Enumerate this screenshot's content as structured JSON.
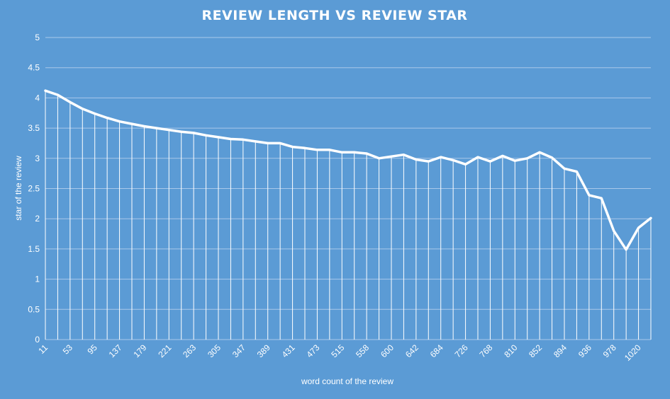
{
  "chart_data": {
    "type": "line",
    "title": "REVIEW LENGTH VS REVIEW STAR",
    "xlabel": "word count of the review",
    "ylabel": "star of the review",
    "ylim": [
      0,
      5
    ],
    "yticks": [
      "0",
      "0.5",
      "1",
      "1.5",
      "2",
      "2.5",
      "3",
      "3.5",
      "4",
      "4.5",
      "5"
    ],
    "grid": true,
    "drop_lines": true,
    "legend": "none",
    "x": [
      11,
      32,
      53,
      74,
      95,
      116,
      137,
      158,
      179,
      200,
      221,
      242,
      263,
      284,
      305,
      326,
      347,
      368,
      389,
      410,
      431,
      452,
      473,
      494,
      515,
      537,
      558,
      579,
      600,
      621,
      642,
      663,
      684,
      705,
      726,
      747,
      768,
      789,
      810,
      831,
      852,
      873,
      894,
      915,
      936,
      957,
      978,
      999,
      1020,
      1041
    ],
    "xtick_labels": [
      "11",
      "53",
      "95",
      "137",
      "179",
      "221",
      "263",
      "305",
      "347",
      "389",
      "431",
      "473",
      "515",
      "558",
      "600",
      "642",
      "684",
      "726",
      "768",
      "810",
      "852",
      "894",
      "936",
      "978",
      "1020"
    ],
    "series": [
      {
        "values": [
          4.12,
          4.05,
          3.93,
          3.82,
          3.74,
          3.67,
          3.61,
          3.57,
          3.53,
          3.5,
          3.47,
          3.44,
          3.42,
          3.38,
          3.35,
          3.32,
          3.31,
          3.28,
          3.25,
          3.25,
          3.19,
          3.17,
          3.14,
          3.14,
          3.1,
          3.1,
          3.08,
          3.0,
          3.03,
          3.06,
          2.98,
          2.95,
          3.02,
          2.97,
          2.9,
          3.02,
          2.95,
          3.04,
          2.96,
          3.0,
          3.1,
          3.01,
          2.83,
          2.78,
          2.39,
          2.34,
          1.8,
          1.49,
          1.85,
          2.01
        ]
      }
    ],
    "colors": {
      "background": "#5b9bd5",
      "line": "#ffffff",
      "grid": "#a9c8ea"
    }
  }
}
